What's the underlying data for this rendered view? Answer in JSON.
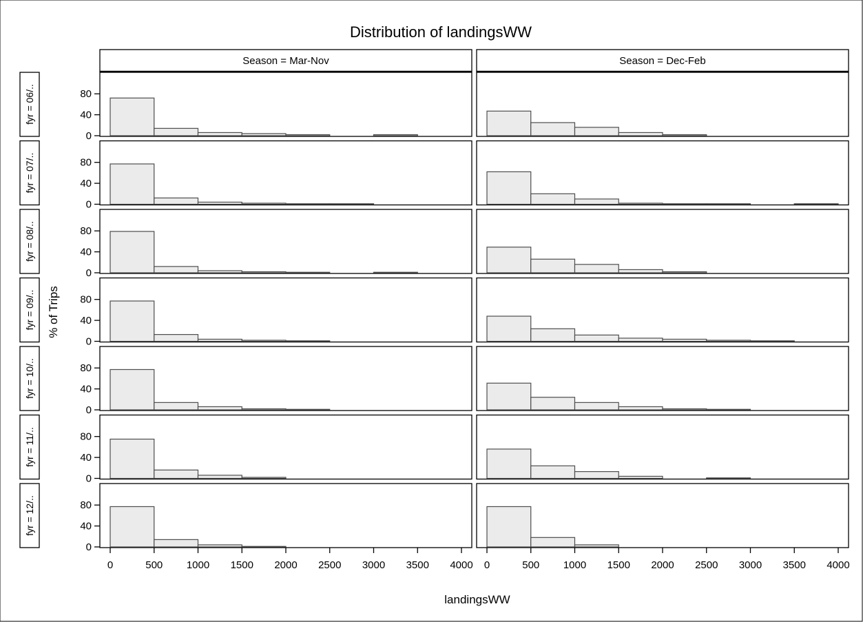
{
  "chart_data": {
    "type": "bar",
    "title": "Distribution of landingsWW",
    "xlabel": "landingsWW",
    "ylabel": "% of Trips",
    "column_labels": [
      "Season = Mar-Nov",
      "Season = Dec-Feb"
    ],
    "row_labels": [
      "fyr = 06/..",
      "fyr = 07/..",
      "fyr = 08/..",
      "fyr = 09/..",
      "fyr = 10/..",
      "fyr = 11/..",
      "fyr = 12/.."
    ],
    "bin_edges": [
      0,
      500,
      1000,
      1500,
      2000,
      2500,
      3000,
      3500,
      4000
    ],
    "x_ticks": [
      0,
      500,
      1000,
      1500,
      2000,
      2500,
      3000,
      3500,
      4000
    ],
    "y_ticks": [
      0,
      40,
      80
    ],
    "xlim": [
      0,
      4000
    ],
    "ylim": [
      0,
      100
    ],
    "bar_color": "#ebebeb",
    "panels": [
      [
        [
          72,
          14,
          6,
          4,
          2,
          0,
          2,
          0
        ],
        [
          77,
          12,
          4,
          2,
          1,
          1,
          0,
          0
        ],
        [
          79,
          12,
          4,
          2,
          1,
          0,
          1,
          0
        ],
        [
          77,
          13,
          4,
          2,
          1,
          0,
          0,
          0
        ],
        [
          77,
          14,
          6,
          2,
          1,
          0,
          0,
          0
        ],
        [
          75,
          16,
          6,
          2,
          0,
          0,
          0,
          0
        ],
        [
          77,
          14,
          4,
          1,
          0,
          0,
          0,
          0
        ]
      ],
      [
        [
          47,
          25,
          16,
          6,
          2,
          0,
          0,
          0
        ],
        [
          62,
          20,
          10,
          2,
          1,
          1,
          0,
          1
        ],
        [
          49,
          26,
          16,
          6,
          2,
          0,
          0,
          0
        ],
        [
          48,
          24,
          12,
          6,
          4,
          2,
          1,
          0
        ],
        [
          51,
          24,
          14,
          6,
          2,
          1,
          0,
          0
        ],
        [
          56,
          24,
          13,
          4,
          0,
          1,
          0,
          0
        ],
        [
          77,
          18,
          4,
          0,
          0,
          0,
          0,
          0
        ]
      ]
    ]
  }
}
